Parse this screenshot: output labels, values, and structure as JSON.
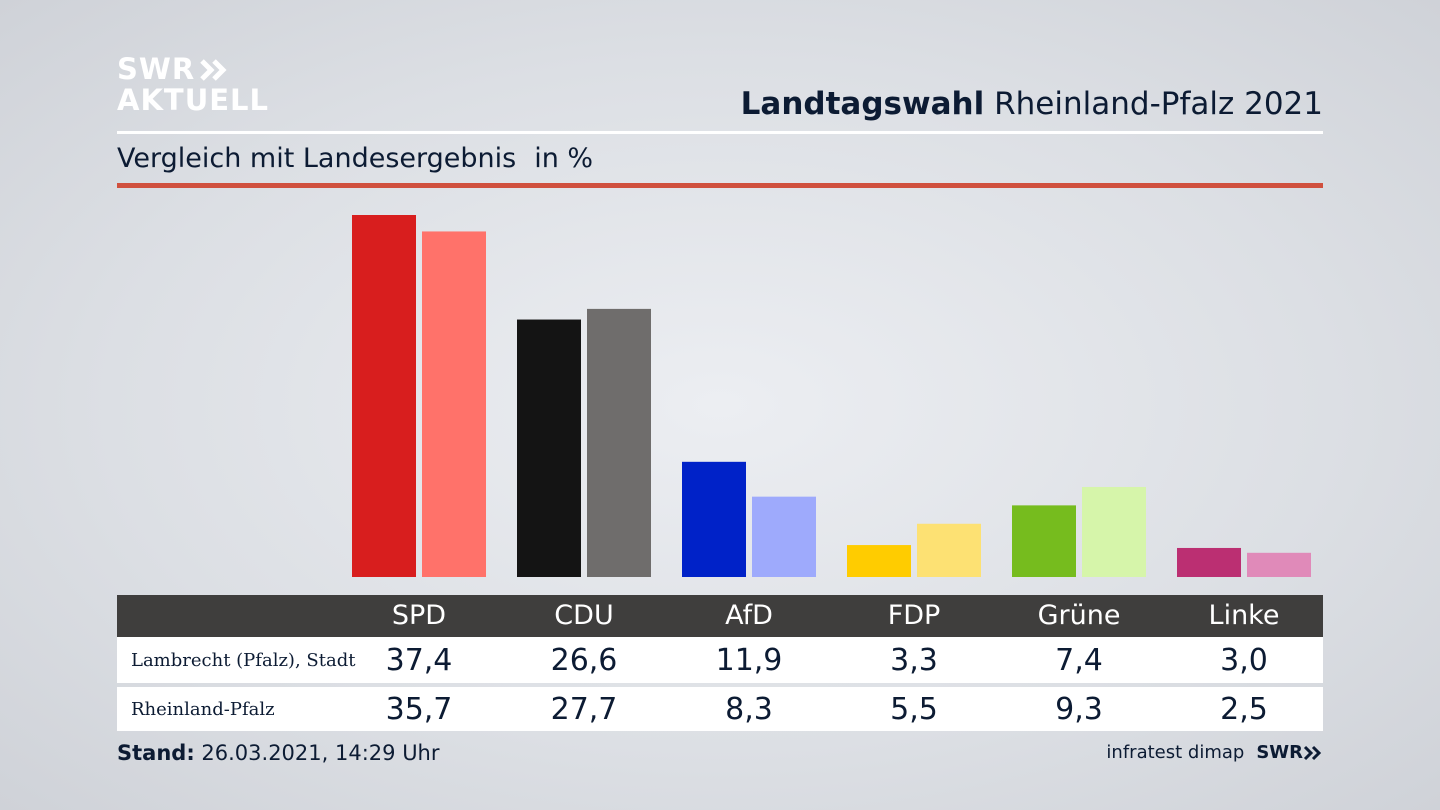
{
  "header": {
    "logo_line1": "SWR",
    "logo_line2": "AKTUELL",
    "title_bold": "Landtagswahl",
    "title_rest": "Rheinland-Pfalz 2021",
    "subtitle": "Vergleich mit Landesergebnis",
    "unit": "in %"
  },
  "chart_data": {
    "type": "bar",
    "categories": [
      "SPD",
      "CDU",
      "AfD",
      "FDP",
      "Grüne",
      "Linke"
    ],
    "series": [
      {
        "name": "Lambrecht (Pfalz), Stadt",
        "values": [
          37.4,
          26.6,
          11.9,
          3.3,
          7.4,
          3.0
        ]
      },
      {
        "name": "Rheinland-Pfalz",
        "values": [
          35.7,
          27.7,
          8.3,
          5.5,
          9.3,
          2.5
        ]
      }
    ],
    "value_labels": [
      [
        "37,4",
        "26,6",
        "11,9",
        "3,3",
        "7,4",
        "3,0"
      ],
      [
        "35,7",
        "27,7",
        "8,3",
        "5,5",
        "9,3",
        "2,5"
      ]
    ],
    "colors_primary": [
      "#d81e1e",
      "#141414",
      "#0022c8",
      "#ffcc00",
      "#76bc1e",
      "#bb2f72"
    ],
    "colors_secondary": [
      "#ff726a",
      "#6f6d6c",
      "#9eaafc",
      "#fde173",
      "#d6f5aa",
      "#e08ab9"
    ],
    "ylim": [
      0,
      37.4
    ],
    "grid": false,
    "xlabel": "",
    "ylabel": ""
  },
  "footer": {
    "stand_label": "Stand:",
    "stand_value": "26.03.2021, 14:29 Uhr",
    "source": "infratest dimap",
    "brand": "SWR"
  },
  "colors": {
    "accent_line": "#d0503e",
    "table_header": "#3f3e3d"
  }
}
